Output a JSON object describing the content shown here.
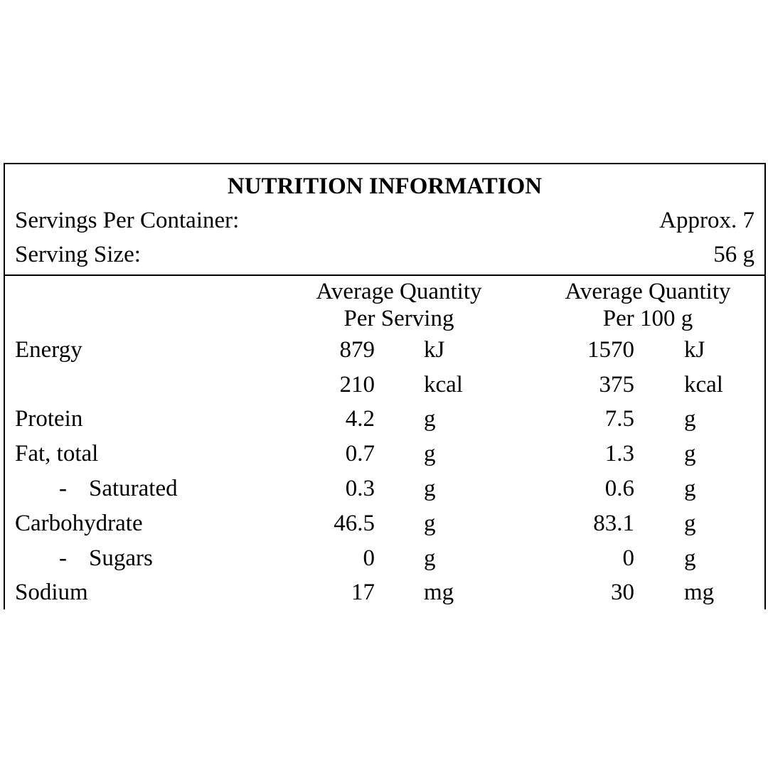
{
  "panel": {
    "title": "NUTRITION INFORMATION",
    "servings_per_container_label": "Servings Per Container:",
    "servings_per_container_value": "Approx. 7",
    "serving_size_label": "Serving Size:",
    "serving_size_value": "56 g"
  },
  "columns": {
    "per_serving_line1": "Average Quantity",
    "per_serving_line2": "Per Serving",
    "per_100g_line1": "Average Quantity",
    "per_100g_line2": "Per 100 g"
  },
  "rows": [
    {
      "label": "Energy",
      "serv_val": "879",
      "serv_unit": "kJ",
      "h_val": "1570",
      "h_unit": "kJ"
    },
    {
      "label": "",
      "serv_val": "210",
      "serv_unit": "kcal",
      "h_val": "375",
      "h_unit": "kcal"
    },
    {
      "label": "Protein",
      "serv_val": "4.2",
      "serv_unit": "g",
      "h_val": "7.5",
      "h_unit": "g"
    },
    {
      "label": "Fat, total",
      "serv_val": "0.7",
      "serv_unit": "g",
      "h_val": "1.3",
      "h_unit": "g"
    },
    {
      "dash": "-",
      "label": "Saturated",
      "serv_val": "0.3",
      "serv_unit": "g",
      "h_val": "0.6",
      "h_unit": "g"
    },
    {
      "label": "Carbohydrate",
      "serv_val": "46.5",
      "serv_unit": "g",
      "h_val": "83.1",
      "h_unit": "g"
    },
    {
      "dash": "-",
      "label": "Sugars",
      "serv_val": "0",
      "serv_unit": "g",
      "h_val": "0",
      "h_unit": "g"
    },
    {
      "label": "Sodium",
      "serv_val": "17",
      "serv_unit": "mg",
      "h_val": "30",
      "h_unit": "mg"
    }
  ]
}
